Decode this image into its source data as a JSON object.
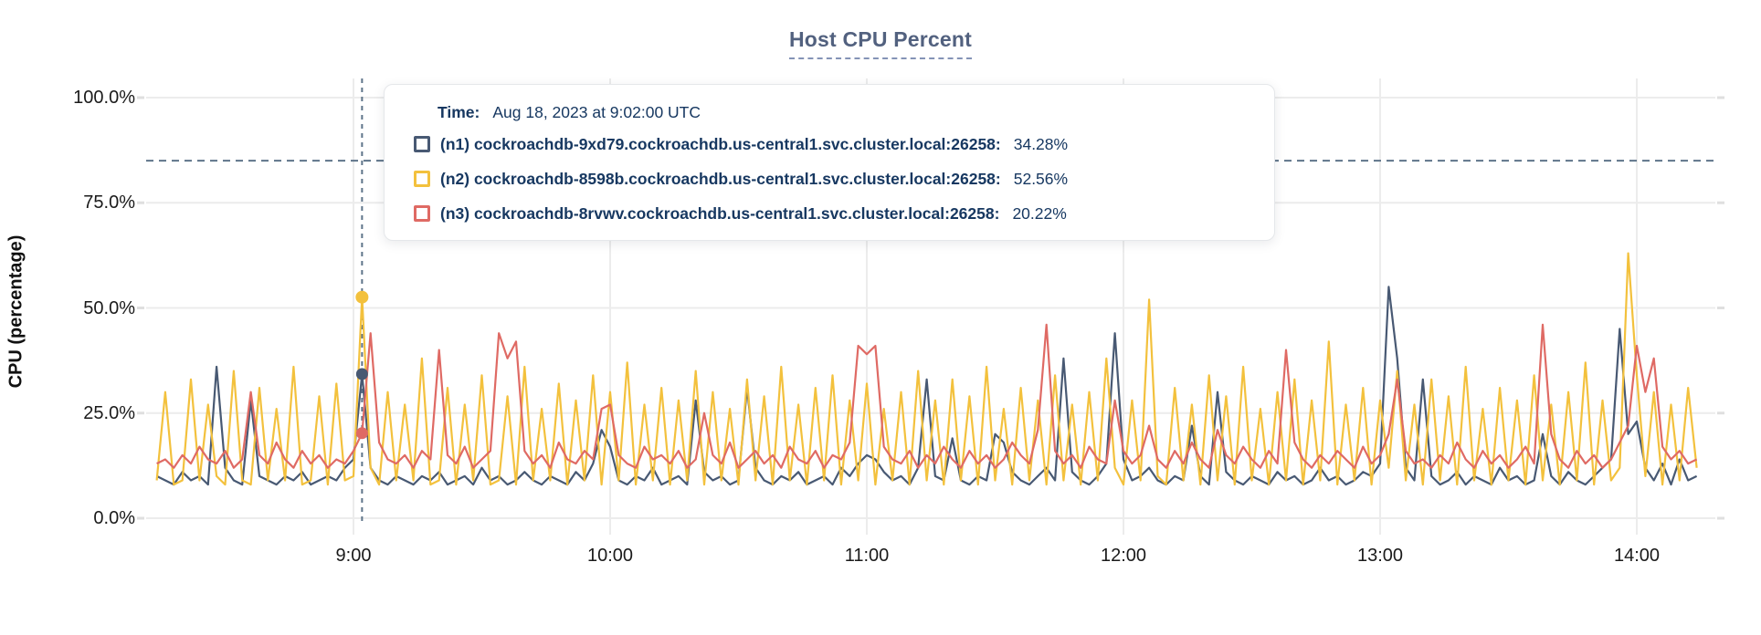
{
  "chart": {
    "title": "Host CPU Percent",
    "y_axis": {
      "label": "CPU (percentage)"
    },
    "colors": {
      "grid": "#ececec",
      "dashed_guides": "#5e7489",
      "tick_text": "#1a1a1a",
      "title_text": "#52617f",
      "tooltip_text": "#173861"
    }
  },
  "tooltip": {
    "time_label": "Time:",
    "time_value": "Aug 18, 2023 at 9:02:00 UTC",
    "rows": [
      {
        "id": "n1",
        "color": "#485973",
        "label": "(n1) cockroachdb-9xd79.cockroachdb.us-central1.svc.cluster.local:26258:",
        "value": "34.28%"
      },
      {
        "id": "n2",
        "color": "#f3c13d",
        "label": "(n2) cockroachdb-8598b.cockroachdb.us-central1.svc.cluster.local:26258:",
        "value": "52.56%"
      },
      {
        "id": "n3",
        "color": "#df6a64",
        "label": "(n3) cockroachdb-8rvwv.cockroachdb.us-central1.svc.cluster.local:26258:",
        "value": "20.22%"
      }
    ]
  },
  "chart_data": {
    "type": "line",
    "title": "Host CPU Percent",
    "ylabel": "CPU (percentage)",
    "xlabel": "",
    "ylim": [
      0,
      100
    ],
    "y_ticks": [
      {
        "pct": 0,
        "label": "0.0%"
      },
      {
        "pct": 25,
        "label": "25.0%"
      },
      {
        "pct": 50,
        "label": "50.0%"
      },
      {
        "pct": 75,
        "label": "75.0%"
      },
      {
        "pct": 100,
        "label": "100.0%"
      }
    ],
    "x_ticks": [
      {
        "minutes": 540,
        "label": "9:00"
      },
      {
        "minutes": 600,
        "label": "10:00"
      },
      {
        "minutes": 660,
        "label": "11:00"
      },
      {
        "minutes": 720,
        "label": "12:00"
      },
      {
        "minutes": 780,
        "label": "13:00"
      },
      {
        "minutes": 840,
        "label": "14:00"
      }
    ],
    "grid": true,
    "legend_position": "tooltip-overlay",
    "threshold_line_pct": 85,
    "hover": {
      "time_minutes": 542,
      "time_label": "Aug 18, 2023 at 9:02:00 UTC",
      "values": {
        "n1": 34.28,
        "n2": 52.56,
        "n3": 20.22
      }
    },
    "x_start_minutes": 494,
    "x_step_minutes": 2,
    "series": [
      {
        "id": "n1",
        "name": "(n1) cockroachdb-9xd79.cockroachdb.us-central1.svc.cluster.local:26258",
        "color": "#485973",
        "values": [
          10,
          9,
          8,
          11,
          9,
          10,
          8,
          36,
          12,
          9,
          8,
          28,
          10,
          9,
          8,
          10,
          9,
          11,
          8,
          9,
          10,
          9,
          12,
          14,
          34.28,
          12,
          9,
          8,
          10,
          9,
          8,
          10,
          9,
          11,
          8,
          9,
          10,
          8,
          12,
          9,
          10,
          8,
          9,
          11,
          9,
          8,
          10,
          9,
          8,
          11,
          9,
          13,
          21,
          17,
          9,
          8,
          10,
          9,
          12,
          8,
          9,
          10,
          8,
          28,
          11,
          9,
          10,
          8,
          9,
          31,
          12,
          9,
          8,
          10,
          9,
          11,
          8,
          9,
          10,
          8,
          12,
          10,
          13,
          15,
          14,
          11,
          9,
          10,
          8,
          12,
          33,
          10,
          9,
          19,
          9,
          8,
          10,
          9,
          20,
          18,
          11,
          9,
          8,
          10,
          12,
          9,
          38,
          11,
          9,
          8,
          10,
          13,
          44,
          14,
          9,
          10,
          12,
          9,
          8,
          10,
          9,
          22,
          10,
          8,
          30,
          11,
          9,
          8,
          10,
          9,
          8,
          11,
          9,
          10,
          8,
          9,
          12,
          9,
          10,
          8,
          9,
          11,
          10,
          13,
          55,
          38,
          12,
          9,
          33,
          10,
          8,
          9,
          11,
          8,
          10,
          9,
          8,
          12,
          9,
          10,
          8,
          9,
          20,
          10,
          8,
          11,
          9,
          8,
          10,
          12,
          14,
          45,
          20,
          23,
          12,
          9,
          13,
          8,
          14,
          9,
          10
        ]
      },
      {
        "id": "n2",
        "name": "(n2) cockroachdb-8598b.cockroachdb.us-central1.svc.cluster.local:26258",
        "color": "#f3c13d",
        "values": [
          9,
          30,
          8,
          9,
          33,
          9,
          27,
          10,
          8,
          35,
          9,
          8,
          31,
          9,
          26,
          9,
          36,
          8,
          9,
          29,
          8,
          32,
          9,
          10,
          52.56,
          12,
          8,
          30,
          9,
          27,
          9,
          38,
          8,
          9,
          31,
          8,
          27,
          9,
          34,
          8,
          9,
          29,
          8,
          36,
          9,
          26,
          9,
          32,
          8,
          28,
          9,
          34,
          8,
          30,
          9,
          37,
          8,
          27,
          9,
          31,
          8,
          28,
          9,
          35,
          8,
          30,
          9,
          26,
          8,
          33,
          9,
          29,
          8,
          36,
          9,
          27,
          8,
          31,
          9,
          34,
          8,
          28,
          9,
          32,
          8,
          26,
          9,
          30,
          8,
          35,
          9,
          28,
          8,
          33,
          9,
          29,
          8,
          36,
          9,
          26,
          8,
          31,
          9,
          28,
          8,
          34,
          9,
          27,
          8,
          30,
          9,
          38,
          12,
          8,
          28,
          9,
          52,
          10,
          8,
          31,
          9,
          27,
          8,
          34,
          9,
          29,
          8,
          36,
          9,
          26,
          8,
          30,
          9,
          33,
          8,
          28,
          9,
          42,
          8,
          27,
          9,
          31,
          8,
          28,
          12,
          35,
          9,
          27,
          8,
          33,
          9,
          29,
          8,
          36,
          9,
          26,
          8,
          31,
          9,
          28,
          8,
          34,
          9,
          27,
          8,
          30,
          9,
          37,
          8,
          28,
          9,
          12,
          63,
          34,
          10,
          30,
          8,
          27,
          9,
          31,
          12
        ]
      },
      {
        "id": "n3",
        "name": "(n3) cockroachdb-8rvwv.cockroachdb.us-central1.svc.cluster.local:26258",
        "color": "#df6a64",
        "values": [
          13,
          14,
          12,
          15,
          13,
          17,
          14,
          13,
          16,
          12,
          14,
          30,
          15,
          13,
          18,
          14,
          12,
          16,
          13,
          15,
          12,
          14,
          13,
          16,
          20.22,
          44,
          18,
          14,
          13,
          15,
          12,
          16,
          14,
          40,
          15,
          13,
          17,
          12,
          14,
          16,
          44,
          38,
          42,
          16,
          13,
          15,
          12,
          18,
          14,
          13,
          16,
          14,
          26,
          27,
          15,
          13,
          12,
          17,
          14,
          15,
          13,
          16,
          12,
          14,
          25,
          15,
          13,
          18,
          12,
          14,
          16,
          13,
          15,
          12,
          17,
          14,
          13,
          16,
          12,
          15,
          14,
          18,
          41,
          39,
          41,
          17,
          14,
          13,
          16,
          12,
          15,
          13,
          17,
          14,
          12,
          16,
          13,
          15,
          12,
          14,
          18,
          15,
          13,
          21,
          46,
          16,
          13,
          15,
          12,
          17,
          14,
          13,
          28,
          16,
          13,
          15,
          22,
          14,
          12,
          16,
          13,
          18,
          14,
          12,
          21,
          15,
          13,
          17,
          14,
          12,
          16,
          13,
          40,
          18,
          14,
          12,
          15,
          13,
          16,
          14,
          12,
          17,
          13,
          15,
          20,
          33,
          16,
          13,
          14,
          12,
          15,
          13,
          18,
          14,
          12,
          16,
          13,
          15,
          12,
          14,
          17,
          13,
          46,
          20,
          14,
          12,
          16,
          13,
          15,
          12,
          14,
          18,
          22,
          41,
          30,
          38,
          17,
          14,
          16,
          13,
          14
        ]
      }
    ]
  }
}
